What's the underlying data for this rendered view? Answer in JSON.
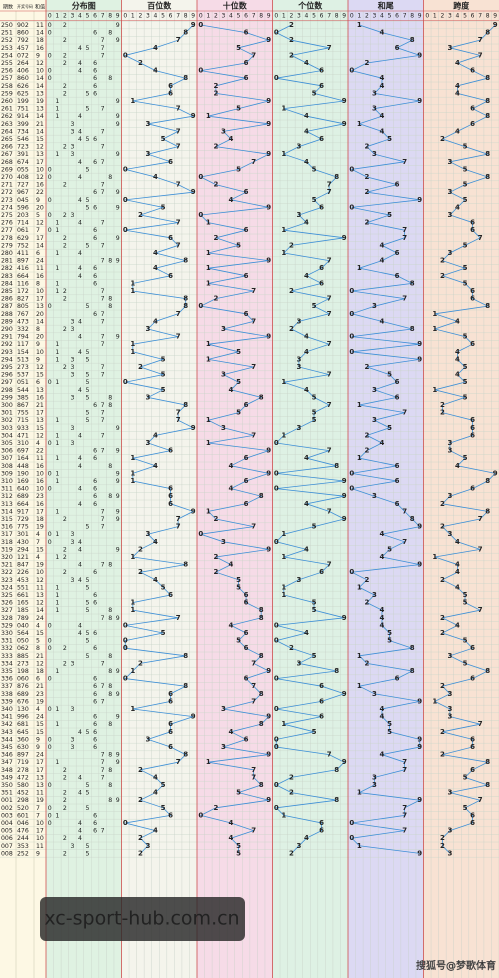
{
  "header": {
    "issue": "期数",
    "number": "开奖号码",
    "sum": "和值",
    "sections": [
      "分布图",
      "百位数",
      "十位数",
      "个位数",
      "和尾",
      "跨度"
    ],
    "digits": [
      0,
      1,
      2,
      3,
      4,
      5,
      6,
      7,
      8,
      9
    ]
  },
  "rows": [
    [
      "250",
      "902",
      11,
      9,
      0,
      2,
      1,
      9
    ],
    [
      "251",
      "860",
      14,
      8,
      6,
      0,
      4,
      8
    ],
    [
      "252",
      "792",
      18,
      7,
      9,
      2,
      8,
      7
    ],
    [
      "253",
      "457",
      16,
      4,
      5,
      7,
      6,
      3
    ],
    [
      "254",
      "072",
      9,
      0,
      7,
      2,
      9,
      7
    ],
    [
      "255",
      "264",
      12,
      2,
      6,
      4,
      2,
      4
    ],
    [
      "256",
      "406",
      10,
      4,
      0,
      6,
      0,
      6
    ],
    [
      "257",
      "860",
      14,
      8,
      6,
      0,
      4,
      8
    ],
    [
      "258",
      "626",
      14,
      6,
      2,
      6,
      4,
      4
    ],
    [
      "259",
      "625",
      13,
      6,
      2,
      5,
      3,
      4
    ],
    [
      "260",
      "199",
      19,
      1,
      9,
      9,
      9,
      8
    ],
    [
      "261",
      "751",
      13,
      7,
      5,
      1,
      3,
      6
    ],
    [
      "262",
      "914",
      14,
      9,
      1,
      4,
      4,
      8
    ],
    [
      "263",
      "399",
      21,
      3,
      9,
      9,
      1,
      6
    ],
    [
      "264",
      "734",
      14,
      7,
      3,
      4,
      4,
      4
    ],
    [
      "265",
      "546",
      15,
      5,
      4,
      6,
      5,
      2
    ],
    [
      "266",
      "723",
      12,
      7,
      2,
      3,
      2,
      5
    ],
    [
      "267",
      "391",
      13,
      3,
      9,
      1,
      3,
      8
    ],
    [
      "268",
      "674",
      17,
      6,
      7,
      4,
      7,
      3
    ],
    [
      "269",
      "055",
      10,
      0,
      5,
      5,
      0,
      5
    ],
    [
      "270",
      "408",
      12,
      4,
      0,
      8,
      2,
      8
    ],
    [
      "271",
      "727",
      16,
      7,
      2,
      7,
      6,
      5
    ],
    [
      "272",
      "967",
      22,
      9,
      6,
      7,
      2,
      3
    ],
    [
      "273",
      "045",
      9,
      0,
      4,
      5,
      9,
      5
    ],
    [
      "274",
      "596",
      20,
      5,
      9,
      6,
      0,
      4
    ],
    [
      "275",
      "203",
      5,
      2,
      0,
      3,
      5,
      3
    ],
    [
      "276",
      "714",
      12,
      7,
      1,
      4,
      2,
      6
    ],
    [
      "277",
      "061",
      7,
      0,
      6,
      1,
      7,
      6
    ],
    [
      "278",
      "629",
      17,
      6,
      2,
      9,
      7,
      7
    ],
    [
      "279",
      "752",
      14,
      7,
      5,
      2,
      4,
      5
    ],
    [
      "280",
      "411",
      6,
      4,
      1,
      1,
      6,
      3
    ],
    [
      "281",
      "897",
      24,
      8,
      9,
      7,
      4,
      2
    ],
    [
      "282",
      "416",
      11,
      4,
      1,
      6,
      1,
      5
    ],
    [
      "283",
      "664",
      16,
      6,
      6,
      4,
      6,
      2
    ],
    [
      "284",
      "116",
      8,
      1,
      1,
      6,
      8,
      5
    ],
    [
      "285",
      "172",
      10,
      1,
      7,
      2,
      0,
      6
    ],
    [
      "286",
      "827",
      17,
      8,
      2,
      7,
      7,
      6
    ],
    [
      "287",
      "805",
      13,
      8,
      0,
      5,
      3,
      8
    ],
    [
      "288",
      "767",
      20,
      7,
      6,
      7,
      0,
      1
    ],
    [
      "289",
      "473",
      14,
      4,
      7,
      3,
      4,
      4
    ],
    [
      "290",
      "332",
      8,
      3,
      3,
      2,
      8,
      1
    ],
    [
      "291",
      "794",
      20,
      7,
      9,
      4,
      0,
      5
    ],
    [
      "292",
      "117",
      9,
      1,
      1,
      7,
      9,
      6
    ],
    [
      "293",
      "154",
      10,
      1,
      5,
      4,
      0,
      4
    ],
    [
      "294",
      "513",
      9,
      5,
      1,
      3,
      9,
      4
    ],
    [
      "295",
      "273",
      12,
      2,
      7,
      3,
      2,
      5
    ],
    [
      "296",
      "537",
      15,
      5,
      3,
      7,
      5,
      4
    ],
    [
      "297",
      "051",
      6,
      0,
      5,
      1,
      6,
      5
    ],
    [
      "298",
      "544",
      13,
      5,
      4,
      4,
      3,
      1
    ],
    [
      "299",
      "385",
      16,
      3,
      8,
      5,
      6,
      5
    ],
    [
      "300",
      "867",
      21,
      8,
      6,
      7,
      1,
      2
    ],
    [
      "301",
      "755",
      17,
      7,
      5,
      5,
      7,
      2
    ],
    [
      "302",
      "715",
      13,
      7,
      1,
      5,
      3,
      6
    ],
    [
      "303",
      "933",
      15,
      9,
      3,
      3,
      5,
      6
    ],
    [
      "304",
      "471",
      12,
      4,
      7,
      1,
      2,
      6
    ],
    [
      "305",
      "310",
      4,
      3,
      1,
      0,
      4,
      3
    ],
    [
      "306",
      "697",
      22,
      6,
      9,
      7,
      2,
      3
    ],
    [
      "307",
      "164",
      11,
      1,
      6,
      4,
      1,
      5
    ],
    [
      "308",
      "448",
      16,
      4,
      4,
      8,
      6,
      4
    ],
    [
      "309",
      "190",
      10,
      1,
      9,
      0,
      0,
      9
    ],
    [
      "310",
      "169",
      16,
      1,
      6,
      9,
      6,
      8
    ],
    [
      "311",
      "640",
      10,
      6,
      4,
      0,
      0,
      6
    ],
    [
      "312",
      "689",
      23,
      6,
      8,
      9,
      3,
      3
    ],
    [
      "313",
      "664",
      16,
      6,
      6,
      4,
      6,
      2
    ],
    [
      "314",
      "917",
      17,
      9,
      1,
      7,
      7,
      8
    ],
    [
      "315",
      "729",
      18,
      7,
      2,
      9,
      8,
      7
    ],
    [
      "316",
      "775",
      19,
      7,
      7,
      5,
      9,
      2
    ],
    [
      "317",
      "301",
      4,
      3,
      0,
      1,
      4,
      3
    ],
    [
      "318",
      "430",
      7,
      4,
      3,
      0,
      7,
      4
    ],
    [
      "319",
      "294",
      15,
      2,
      9,
      4,
      5,
      7
    ],
    [
      "320",
      "121",
      4,
      1,
      2,
      1,
      4,
      1
    ],
    [
      "321",
      "847",
      19,
      8,
      4,
      7,
      9,
      4
    ],
    [
      "322",
      "226",
      10,
      2,
      2,
      6,
      0,
      4
    ],
    [
      "323",
      "453",
      12,
      4,
      5,
      3,
      2,
      2
    ],
    [
      "324",
      "551",
      11,
      5,
      5,
      1,
      1,
      4
    ],
    [
      "325",
      "661",
      13,
      6,
      6,
      1,
      3,
      5
    ],
    [
      "326",
      "165",
      12,
      1,
      6,
      5,
      2,
      5
    ],
    [
      "327",
      "185",
      14,
      1,
      8,
      5,
      4,
      7
    ],
    [
      "328",
      "789",
      24,
      7,
      8,
      9,
      4,
      2
    ],
    [
      "329",
      "040",
      4,
      0,
      4,
      0,
      4,
      4
    ],
    [
      "330",
      "564",
      15,
      5,
      6,
      4,
      5,
      2
    ],
    [
      "331",
      "050",
      5,
      0,
      5,
      0,
      5,
      5
    ],
    [
      "332",
      "062",
      8,
      0,
      6,
      2,
      8,
      6
    ],
    [
      "333",
      "885",
      21,
      8,
      8,
      5,
      1,
      3
    ],
    [
      "334",
      "273",
      12,
      2,
      7,
      3,
      2,
      5
    ],
    [
      "335",
      "198",
      18,
      1,
      9,
      8,
      8,
      8
    ],
    [
      "336",
      "060",
      6,
      0,
      6,
      0,
      6,
      6
    ],
    [
      "337",
      "876",
      21,
      8,
      7,
      6,
      1,
      2
    ],
    [
      "338",
      "689",
      23,
      6,
      8,
      9,
      3,
      3
    ],
    [
      "339",
      "676",
      19,
      6,
      7,
      6,
      9,
      1
    ],
    [
      "340",
      "130",
      4,
      1,
      3,
      0,
      4,
      3
    ],
    [
      "341",
      "996",
      24,
      9,
      9,
      6,
      4,
      3
    ],
    [
      "342",
      "681",
      15,
      6,
      8,
      1,
      5,
      7
    ],
    [
      "343",
      "645",
      15,
      6,
      4,
      5,
      5,
      2
    ],
    [
      "344",
      "360",
      9,
      3,
      6,
      0,
      9,
      6
    ],
    [
      "345",
      "630",
      9,
      6,
      3,
      0,
      9,
      6
    ],
    [
      "346",
      "897",
      24,
      8,
      9,
      7,
      4,
      2
    ],
    [
      "347",
      "719",
      17,
      7,
      1,
      9,
      7,
      8
    ],
    [
      "348",
      "278",
      17,
      2,
      7,
      8,
      7,
      6
    ],
    [
      "349",
      "472",
      13,
      4,
      7,
      2,
      3,
      5
    ],
    [
      "350",
      "580",
      13,
      5,
      8,
      0,
      3,
      8
    ],
    [
      "351",
      "452",
      11,
      4,
      5,
      2,
      1,
      3
    ],
    [
      "001",
      "298",
      19,
      2,
      9,
      8,
      9,
      7
    ],
    [
      "002",
      "520",
      7,
      5,
      2,
      0,
      7,
      5
    ],
    [
      "003",
      "601",
      7,
      6,
      0,
      1,
      7,
      6
    ],
    [
      "004",
      "046",
      10,
      0,
      4,
      6,
      0,
      6
    ],
    [
      "005",
      "476",
      17,
      4,
      7,
      6,
      7,
      3
    ],
    [
      "006",
      "244",
      10,
      2,
      4,
      4,
      0,
      2
    ],
    [
      "007",
      "353",
      11,
      3,
      5,
      3,
      1,
      2
    ],
    [
      "008",
      "252",
      9,
      2,
      5,
      2,
      9,
      3
    ]
  ],
  "watermark": {
    "site": "xc-sport-hub.com.cn",
    "credit": "搜狐号@梦歌体育"
  }
}
